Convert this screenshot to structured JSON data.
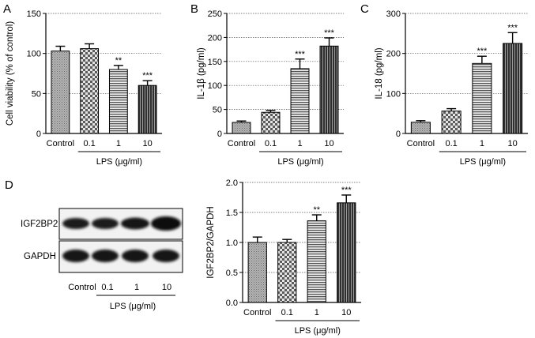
{
  "figure": {
    "panel_labels": [
      "A",
      "B",
      "C",
      "D"
    ]
  },
  "chart_data": [
    {
      "panel": "A",
      "type": "bar",
      "categories": [
        "Control",
        "0.1",
        "1",
        "10"
      ],
      "values": [
        103,
        106,
        80,
        60
      ],
      "errors": [
        6,
        6,
        5,
        6
      ],
      "significance": [
        "",
        "",
        "**",
        "***"
      ],
      "ylabel": "Cell viability (% of control)",
      "xlabel": "LPS (μg/ml)",
      "ylim": [
        0,
        150
      ],
      "yticks": [
        0,
        50,
        100,
        150
      ],
      "grid": true
    },
    {
      "panel": "B",
      "type": "bar",
      "categories": [
        "Control",
        "0.1",
        "1",
        "10"
      ],
      "values": [
        23,
        44,
        135,
        182
      ],
      "errors": [
        3,
        4,
        20,
        17
      ],
      "significance": [
        "",
        "",
        "***",
        "***"
      ],
      "ylabel": "IL-1β (pg/ml)",
      "xlabel": "LPS (μg/ml)",
      "ylim": [
        0,
        250
      ],
      "yticks": [
        0,
        50,
        100,
        150,
        200,
        250
      ],
      "grid": true
    },
    {
      "panel": "C",
      "type": "bar",
      "categories": [
        "Control",
        "0.1",
        "1",
        "10"
      ],
      "values": [
        28,
        56,
        175,
        225
      ],
      "errors": [
        4,
        6,
        18,
        27
      ],
      "significance": [
        "",
        "",
        "***",
        "***"
      ],
      "ylabel": "IL-18 (pg/ml)",
      "xlabel": "LPS (μg/ml)",
      "ylim": [
        0,
        300
      ],
      "yticks": [
        0,
        100,
        200,
        300
      ],
      "grid": true
    },
    {
      "panel": "D",
      "type": "bar",
      "categories": [
        "Control",
        "0.1",
        "1",
        "10"
      ],
      "values": [
        1.0,
        1.0,
        1.36,
        1.66
      ],
      "errors": [
        0.09,
        0.05,
        0.1,
        0.13
      ],
      "significance": [
        "",
        "",
        "**",
        "***"
      ],
      "ylabel": "IGF2BP2/GAPDH",
      "xlabel": "LPS (μg/ml)",
      "ylim": [
        0,
        2.0
      ],
      "yticks": [
        "0.0",
        "0.5",
        "1.0",
        "1.5",
        "2.0"
      ],
      "grid": true
    }
  ],
  "blot": {
    "rows": [
      "IGF2BP2",
      "GAPDH"
    ],
    "lanes": [
      "Control",
      "0.1",
      "1",
      "10"
    ],
    "xlabel": "LPS (μg/ml)"
  }
}
